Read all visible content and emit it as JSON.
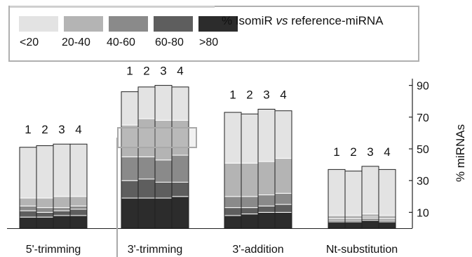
{
  "legend": {
    "title_pre": "% IsomiR ",
    "title_em": "vs",
    "title_post": " reference-miRNA",
    "categories": [
      "<20",
      "20-40",
      "40-60",
      "60-80",
      ">80"
    ],
    "colors": [
      "#e3e3e3",
      "#b4b4b4",
      "#8a8a8a",
      "#5e5e5e",
      "#2c2c2c"
    ]
  },
  "chart_data": {
    "type": "bar",
    "stacked": true,
    "groups": [
      "5'-trimming",
      "3'-trimming",
      "3'-addition",
      "Nt-substitution"
    ],
    "bar_labels": [
      "1",
      "2",
      "3",
      "4"
    ],
    "ylabel": "% miRNAs",
    "yticks": [
      10,
      30,
      50,
      70,
      90
    ],
    "ylim": [
      0,
      93
    ],
    "y_axis_position": "right",
    "grid": false,
    "legend_position": "top",
    "series": [
      {
        "name": ">80",
        "color": "#2c2c2c",
        "values": [
          [
            7,
            7,
            8,
            8
          ],
          [
            19,
            19,
            19,
            20
          ],
          [
            8,
            9,
            10,
            10
          ],
          [
            4,
            4,
            5,
            4
          ]
        ]
      },
      {
        "name": "60-80",
        "color": "#5e5e5e",
        "values": [
          [
            4,
            3,
            3,
            4
          ],
          [
            11,
            12,
            10,
            9
          ],
          [
            5,
            4,
            4,
            5
          ],
          [
            1,
            1,
            1,
            1
          ]
        ]
      },
      {
        "name": "40-60",
        "color": "#8a8a8a",
        "values": [
          [
            3,
            3,
            2,
            2
          ],
          [
            15,
            14,
            14,
            17
          ],
          [
            7,
            7,
            7,
            7
          ],
          [
            1,
            1,
            1,
            1
          ]
        ]
      },
      {
        "name": "20-40",
        "color": "#b4b4b4",
        "values": [
          [
            5,
            6,
            7,
            6
          ],
          [
            20,
            24,
            25,
            22
          ],
          [
            21,
            21,
            21,
            22
          ],
          [
            2,
            2,
            2,
            2
          ]
        ]
      },
      {
        "name": "<20",
        "color": "#e3e3e3",
        "values": [
          [
            32,
            33,
            33,
            33
          ],
          [
            21,
            20,
            22,
            21
          ],
          [
            32,
            31,
            33,
            30
          ],
          [
            29,
            28,
            30,
            29
          ]
        ]
      }
    ]
  }
}
